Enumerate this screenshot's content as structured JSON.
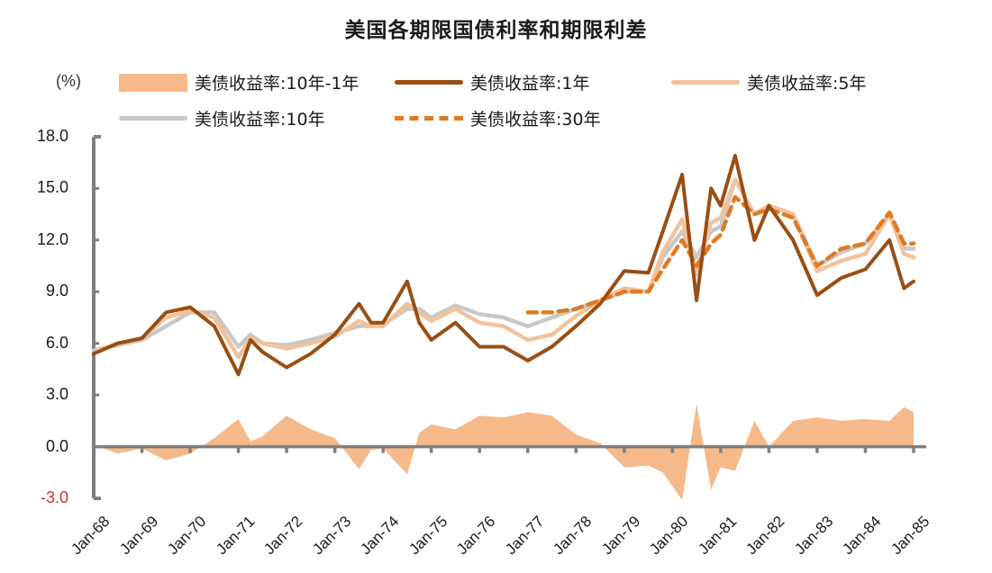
{
  "title": "美国各期限国债利率和期限利差",
  "unit_label": "(%)",
  "legend": [
    {
      "label": "美债收益率:10年-1年",
      "style": "area",
      "color": "#f6b98a"
    },
    {
      "label": "美债收益率:1年",
      "style": "line",
      "color": "#9a4e12"
    },
    {
      "label": "美债收益率:5年",
      "style": "line",
      "color": "#f3c29b"
    },
    {
      "label": "美债收益率:10年",
      "style": "line",
      "color": "#c8c8c8"
    },
    {
      "label": "美债收益率:30年",
      "style": "dashed",
      "color": "#e07b24"
    }
  ],
  "y_ticks": [
    {
      "label": "18.0",
      "value": 18,
      "color": "#1a1a1a"
    },
    {
      "label": "15.0",
      "value": 15,
      "color": "#1a1a1a"
    },
    {
      "label": "12.0",
      "value": 12,
      "color": "#1a1a1a"
    },
    {
      "label": "9.0",
      "value": 9,
      "color": "#1a1a1a"
    },
    {
      "label": "6.0",
      "value": 6,
      "color": "#1a1a1a"
    },
    {
      "label": "3.0",
      "value": 3,
      "color": "#1a1a1a"
    },
    {
      "label": "0.0",
      "value": 0,
      "color": "#1a1a1a"
    },
    {
      "label": "-3.0",
      "value": -3,
      "color": "#d32f2f"
    }
  ],
  "x_ticks": [
    "Jan-68",
    "Jan-69",
    "Jan-70",
    "Jan-71",
    "Jan-72",
    "Jan-73",
    "Jan-74",
    "Jan-75",
    "Jan-76",
    "Jan-77",
    "Jan-78",
    "Jan-79",
    "Jan-80",
    "Jan-81",
    "Jan-82",
    "Jan-83",
    "Jan-84",
    "Jan-85"
  ],
  "chart_data": {
    "type": "line",
    "title": "美国各期限国债利率和期限利差",
    "xlabel": "",
    "ylabel": "(%)",
    "ylim": [
      -3,
      18
    ],
    "grid": false,
    "legend_position": "top",
    "x": [
      1968.0,
      1968.5,
      1969.0,
      1969.5,
      1970.0,
      1970.5,
      1971.0,
      1971.25,
      1971.5,
      1972.0,
      1972.5,
      1973.0,
      1973.5,
      1973.75,
      1974.0,
      1974.5,
      1974.75,
      1975.0,
      1975.5,
      1976.0,
      1976.5,
      1977.0,
      1977.5,
      1978.0,
      1978.5,
      1979.0,
      1979.5,
      1979.8,
      1980.2,
      1980.5,
      1980.8,
      1981.0,
      1981.3,
      1981.7,
      1982.0,
      1982.5,
      1983.0,
      1983.5,
      1984.0,
      1984.5,
      1984.8,
      1985.0
    ],
    "series": [
      {
        "name": "美债收益率:1年",
        "style": "line",
        "values": [
          5.4,
          6.0,
          6.3,
          7.8,
          8.1,
          7.0,
          4.2,
          6.2,
          5.5,
          4.6,
          5.4,
          6.5,
          8.3,
          7.2,
          7.2,
          9.6,
          7.2,
          6.2,
          7.2,
          5.8,
          5.8,
          5.0,
          5.8,
          7.0,
          8.3,
          10.2,
          10.1,
          12.5,
          15.8,
          8.5,
          15.0,
          14.0,
          16.9,
          12.0,
          14.0,
          12.0,
          8.8,
          9.8,
          10.3,
          12.0,
          9.2,
          9.6
        ]
      },
      {
        "name": "美债收益率:5年",
        "style": "line",
        "values": [
          5.5,
          6.0,
          6.3,
          7.5,
          7.9,
          7.5,
          5.2,
          6.3,
          6.0,
          5.7,
          6.0,
          6.4,
          7.3,
          7.0,
          7.0,
          8.3,
          7.8,
          7.3,
          8.0,
          7.2,
          7.0,
          6.2,
          6.5,
          7.6,
          8.5,
          9.2,
          9.0,
          11.3,
          13.2,
          10.0,
          13.0,
          13.3,
          15.5,
          13.5,
          14.0,
          13.5,
          10.2,
          10.8,
          11.2,
          13.5,
          11.2,
          11.0
        ]
      },
      {
        "name": "美债收益率:10年",
        "style": "line",
        "values": [
          5.6,
          5.9,
          6.2,
          7.0,
          7.8,
          7.8,
          5.8,
          6.5,
          6.0,
          5.9,
          6.2,
          6.6,
          7.0,
          7.0,
          7.1,
          8.0,
          8.0,
          7.5,
          8.2,
          7.7,
          7.5,
          7.0,
          7.5,
          8.0,
          8.5,
          9.0,
          9.0,
          11.0,
          12.5,
          11.0,
          12.5,
          12.8,
          15.5,
          13.5,
          14.0,
          13.5,
          10.5,
          11.3,
          11.8,
          13.5,
          11.5,
          11.5
        ]
      },
      {
        "name": "美债收益率:30年",
        "style": "dashed",
        "values": [
          null,
          null,
          null,
          null,
          null,
          null,
          null,
          null,
          null,
          null,
          null,
          null,
          null,
          null,
          null,
          null,
          null,
          null,
          null,
          null,
          null,
          7.8,
          7.8,
          8.0,
          8.5,
          9.0,
          9.0,
          10.3,
          12.0,
          10.5,
          11.8,
          12.3,
          14.5,
          13.5,
          13.8,
          13.3,
          10.5,
          11.5,
          11.8,
          13.6,
          11.8,
          11.8
        ]
      },
      {
        "name": "美债收益率:10年-1年",
        "style": "area",
        "values": [
          0.1,
          -0.4,
          -0.1,
          -0.8,
          -0.4,
          0.5,
          1.6,
          0.3,
          0.6,
          1.8,
          1.0,
          0.5,
          -1.3,
          -0.2,
          -0.1,
          -1.6,
          0.8,
          1.3,
          1.0,
          1.8,
          1.7,
          2.0,
          1.8,
          0.7,
          0.2,
          -1.2,
          -1.1,
          -1.5,
          -3.1,
          2.5,
          -2.5,
          -1.2,
          -1.4,
          1.5,
          0.0,
          1.5,
          1.7,
          1.5,
          1.6,
          1.5,
          2.3,
          2.0
        ]
      }
    ],
    "categories_labels": [
      "Jan-68",
      "Jan-69",
      "Jan-70",
      "Jan-71",
      "Jan-72",
      "Jan-73",
      "Jan-74",
      "Jan-75",
      "Jan-76",
      "Jan-77",
      "Jan-78",
      "Jan-79",
      "Jan-80",
      "Jan-81",
      "Jan-82",
      "Jan-83",
      "Jan-84",
      "Jan-85"
    ]
  }
}
